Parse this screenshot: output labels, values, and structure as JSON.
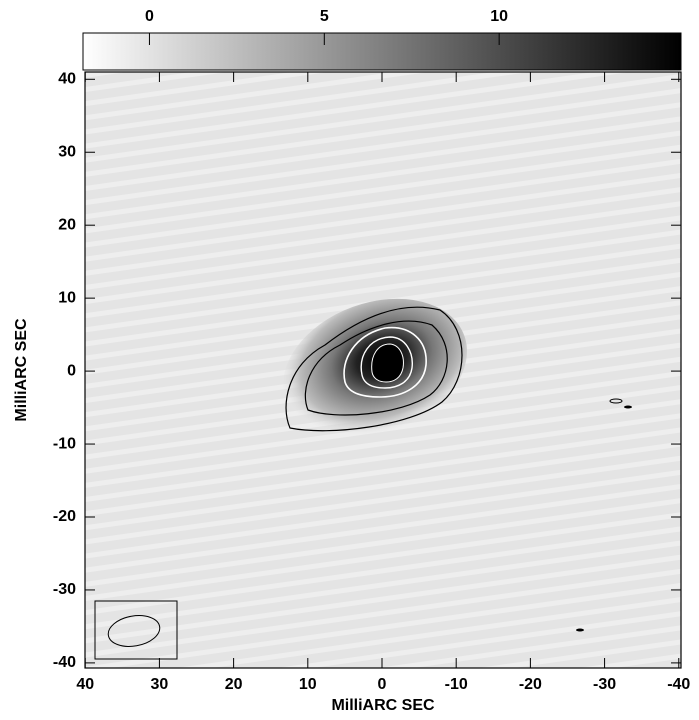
{
  "chart_data": {
    "type": "image",
    "xlabel": "MilliARC SEC",
    "ylabel": "MilliARC SEC",
    "xlim": [
      40.3,
      -40.3
    ],
    "xticks": [
      40,
      30,
      20,
      10,
      0,
      -10,
      -20,
      -30,
      -40
    ],
    "ylim": [
      -40.7,
      41
    ],
    "yticks": [
      40,
      30,
      20,
      10,
      0,
      -10,
      -20,
      -30,
      -40
    ],
    "colorbar": {
      "lim": [
        -1.9,
        15.2
      ],
      "ticks": [
        0,
        5,
        10
      ]
    }
  }
}
